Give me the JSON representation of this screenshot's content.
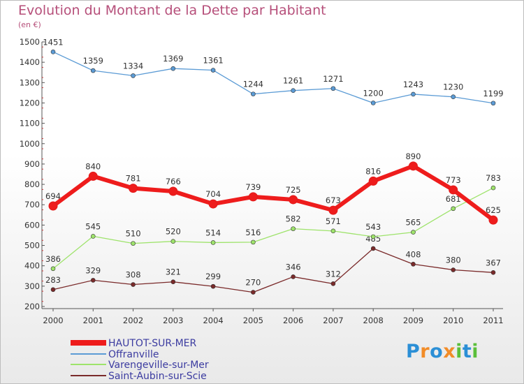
{
  "chart_data": {
    "type": "line",
    "title": "Evolution du Montant de la Dette par Habitant",
    "subtitle": "(en €)",
    "categories": [
      "2000",
      "2001",
      "2002",
      "2003",
      "2004",
      "2005",
      "2006",
      "2007",
      "2008",
      "2009",
      "2010",
      "2011"
    ],
    "ylim": [
      200,
      1500
    ],
    "yticks": [
      200,
      300,
      400,
      500,
      600,
      700,
      800,
      900,
      1000,
      1100,
      1200,
      1300,
      1400,
      1500
    ],
    "grid": false,
    "legend_position": "bottom-left",
    "series": [
      {
        "name": "HAUTOT-SUR-MER",
        "color": "#ee1c1c",
        "values": [
          694,
          840,
          781,
          766,
          704,
          739,
          725,
          673,
          816,
          890,
          773,
          625
        ]
      },
      {
        "name": "Offranville",
        "color": "#5b9bd5",
        "values": [
          1451,
          1359,
          1334,
          1369,
          1361,
          1244,
          1261,
          1271,
          1200,
          1243,
          1230,
          1199
        ]
      },
      {
        "name": "Varengeville-sur-Mer",
        "color": "#9ee36b",
        "values": [
          386,
          545,
          510,
          520,
          514,
          516,
          582,
          571,
          543,
          565,
          681,
          783
        ]
      },
      {
        "name": "Saint-Aubin-sur-Scie",
        "color": "#7a2a2a",
        "values": [
          283,
          329,
          308,
          321,
          299,
          270,
          346,
          312,
          485,
          408,
          380,
          367
        ]
      }
    ]
  },
  "brand": {
    "letters": [
      "P",
      "r",
      "o",
      "x",
      "i",
      "t",
      "i"
    ],
    "colors": [
      "#2b8fd6",
      "#f28c28",
      "#2b8fd6",
      "#f28c28",
      "#5bbf3a",
      "#2b8fd6",
      "#5bbf3a"
    ]
  }
}
